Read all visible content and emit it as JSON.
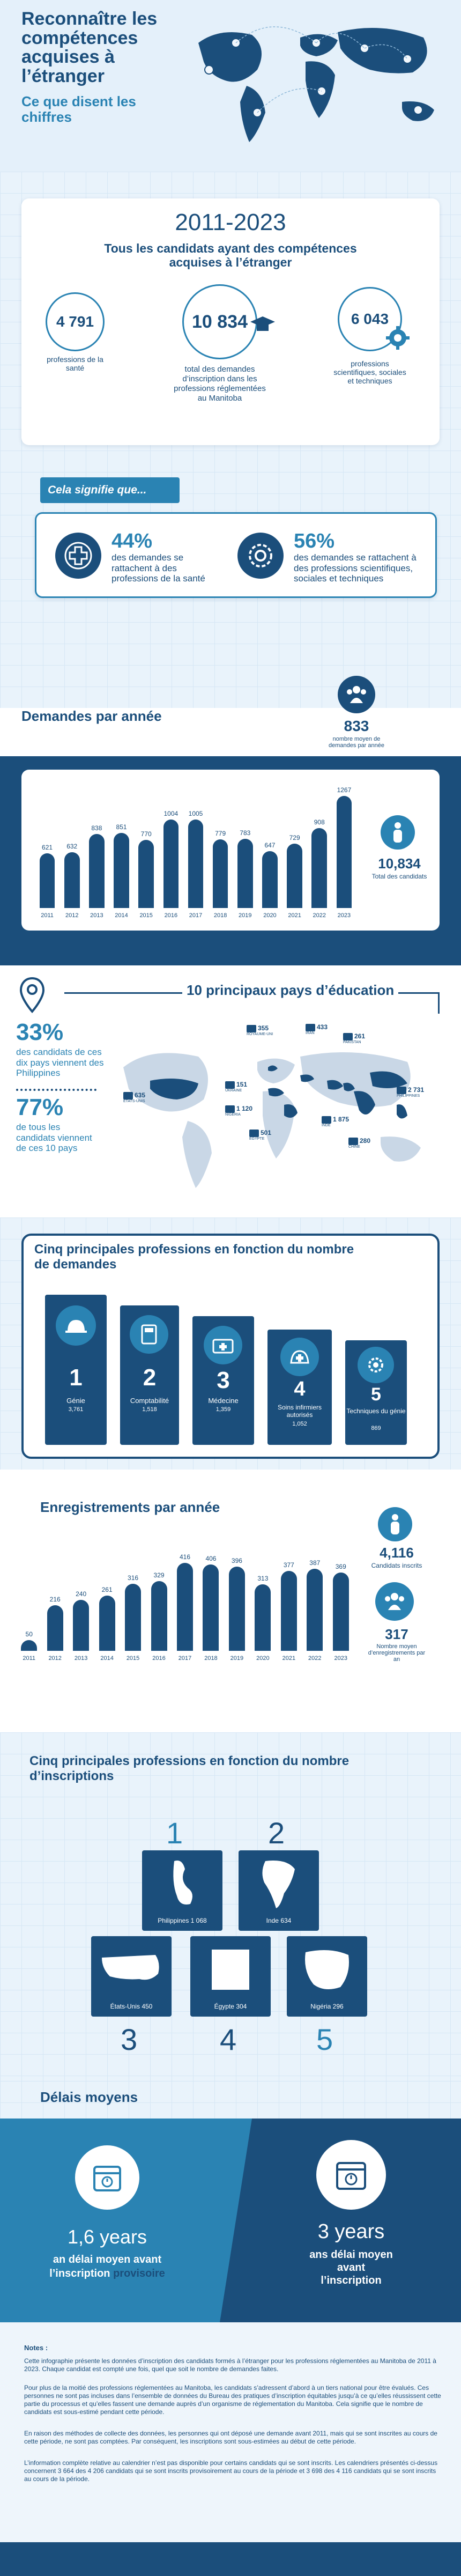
{
  "header": {
    "title": "Reconnaître les compétences acquises à l’étranger",
    "subtitle": "Ce que disent les chiffres"
  },
  "overview": {
    "years": "2011-2023",
    "heading": "Tous les candidats ayant des compétences acquises à l’étranger",
    "stat_health": {
      "value": "4 791",
      "label": "professions de la santé"
    },
    "stat_total": {
      "value": "10 834",
      "label": "total des demandes d’inscription dans les professions réglementées au Manitoba"
    },
    "stat_sci": {
      "value": "6 043",
      "label": "professions scientifiques, sociales et techniques"
    },
    "meaning_label": "Cela signifie que...",
    "pct_health": {
      "value": "44%",
      "label": "des demandes se rattachent à des professions de la santé"
    },
    "pct_sci": {
      "value": "56%",
      "label": "des demandes se rattachent à des professions scientifiques, sociales et techniques"
    }
  },
  "per_year": {
    "title": "Demandes par année",
    "avg_value": "833",
    "avg_label": "nombre moyen de demandes par année",
    "total_value": "10,834",
    "total_label": "Total des candidats"
  },
  "chart_data": [
    {
      "type": "bar",
      "title": "Demandes par année",
      "categories": [
        "2011",
        "2012",
        "2013",
        "2014",
        "2015",
        "2016",
        "2017",
        "2018",
        "2019",
        "2020",
        "2021",
        "2022",
        "2023"
      ],
      "values": [
        621,
        632,
        838,
        851,
        770,
        1004,
        1005,
        779,
        783,
        647,
        729,
        908,
        1267
      ],
      "labels": [
        "621",
        "632",
        "838",
        "851",
        "770",
        "1004",
        "1005",
        "779",
        "783",
        "647",
        "729",
        "908",
        "1267"
      ]
    },
    {
      "type": "bar",
      "title": "Enregistrements par année",
      "categories": [
        "2011",
        "2012",
        "2013",
        "2014",
        "2015",
        "2016",
        "2017",
        "2018",
        "2019",
        "2020",
        "2021",
        "2022",
        "2023"
      ],
      "values": [
        50,
        216,
        240,
        261,
        316,
        329,
        416,
        406,
        396,
        313,
        377,
        387,
        369
      ],
      "labels": [
        "50",
        "216",
        "240",
        "261",
        "316",
        "329",
        "416",
        "406",
        "396",
        "313",
        "377",
        "387",
        "369"
      ]
    }
  ],
  "countries": {
    "title": "10 principaux pays d’éducation",
    "pct_philippines": "33%",
    "pct_philippines_label": "des candidats de ces dix pays viennent des Philippines",
    "pct_top10": "77%",
    "pct_top10_label": "de tous les candidats viennent de ces 10 pays",
    "pins": [
      {
        "value": "355",
        "country": "ROYAUME-UNI"
      },
      {
        "value": "433",
        "country": "IRAN"
      },
      {
        "value": "261",
        "country": "PAKISTAN"
      },
      {
        "value": "151",
        "country": "UKRAINE"
      },
      {
        "value": "1 120",
        "country": "NIGÉRIA"
      },
      {
        "value": "635",
        "country": "ÉTATS-UNIS"
      },
      {
        "value": "2 731",
        "country": "PHILIPPINES"
      },
      {
        "value": "1 875",
        "country": "INDE"
      },
      {
        "value": "501",
        "country": "ÉGYPTE"
      },
      {
        "value": "280",
        "country": "CHINE"
      }
    ]
  },
  "top_professions_app": {
    "title": "Cinq principales professions en fonction du nombre de demandes",
    "items": [
      {
        "rank": "1",
        "name": "Génie",
        "value": "3,761"
      },
      {
        "rank": "2",
        "name": "Comptabilité",
        "value": "1,518"
      },
      {
        "rank": "3",
        "name": "Médecine",
        "value": "1,359"
      },
      {
        "rank": "4",
        "name": "Soins infirmiers autorisés",
        "value": "1,052"
      },
      {
        "rank": "5",
        "name": "Techniques du génie",
        "value": "869"
      }
    ]
  },
  "registrations": {
    "title": "Enregistrements par année",
    "total_value": "4,116",
    "total_label": "Candidats inscrits",
    "avg_value": "317",
    "avg_label": "Nombre moyen d’enregistrements par an"
  },
  "top_professions_reg": {
    "title": "Cinq principales professions en fonction du nombre d’inscriptions",
    "items": [
      {
        "rank": "1",
        "country": "Philippines",
        "value": "1 068"
      },
      {
        "rank": "2",
        "country": "Inde",
        "value": "634"
      },
      {
        "rank": "3",
        "country": "États-Unis",
        "value": "450"
      },
      {
        "rank": "4",
        "country": "Égypte",
        "value": "304"
      },
      {
        "rank": "5",
        "country": "Nigéria",
        "value": "296"
      }
    ]
  },
  "delays": {
    "title": "Délais moyens",
    "left_value": "1,6 years",
    "left_label_1": "an délai moyen avant",
    "left_label_2": "l’inscription",
    "left_label_bold": "provisoire",
    "right_value": "3 years",
    "right_label": "ans délai moyen avant l’inscription"
  },
  "notes": {
    "title": "Notes :",
    "p1": "Cette infographie présente les données d’inscription des candidats formés à l’étranger pour les professions réglementées au Manitoba de 2011 à 2023. Chaque candidat est compté une fois, quel que soit le nombre de demandes faites.",
    "p2": "Pour plus de la moitié des professions réglementées au Manitoba, les candidats s’adressent d’abord à un tiers national pour être évalués. Ces personnes ne sont pas incluses dans l’ensemble de données du Bureau des pratiques d’inscription équitables jusqu’à ce qu’elles réussissent cette partie du processus et qu’elles fassent une demande auprès d’un organisme de réglementation du Manitoba. Cela signifie que le nombre de candidats est sous-estimé pendant cette période.",
    "p3": "En raison des méthodes de collecte des données, les personnes qui ont déposé une demande avant 2011, mais qui se sont inscrites au cours de cette période, ne sont pas comptées. Par conséquent, les inscriptions sont sous-estimées au début de cette période.",
    "p4": "L’information complète relative au calendrier n’est pas disponible pour certains candidats qui se sont inscrits. Les calendriers présentés ci-dessus concernent 3 664 des 4 206 candidats qui se sont inscrits provisoirement au cours de la période et 3 698 des 4 116 candidats qui se sont inscrits au cours de la période."
  }
}
